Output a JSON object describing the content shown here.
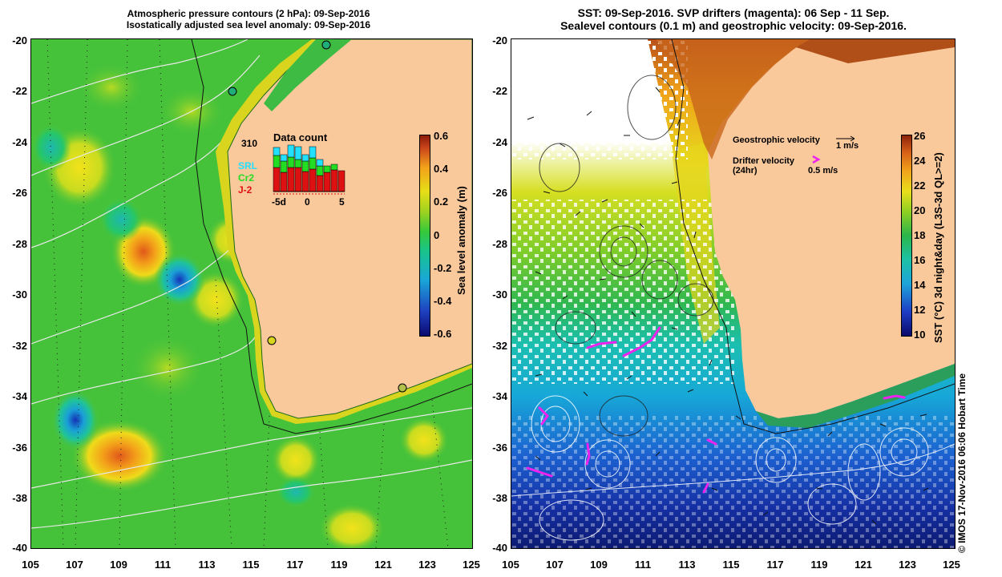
{
  "left_panel": {
    "title_line1": "Atmospheric pressure contours (2 hPa): 09-Sep-2016",
    "title_line2": "Isostatically adjusted sea level anomaly: 09-Sep-2016",
    "y_ticks": [
      "-20",
      "-22",
      "-24",
      "-26",
      "-28",
      "-30",
      "-32",
      "-34",
      "-36",
      "-38",
      "-40"
    ],
    "colorbar_title": "Sea level anomaly (m)",
    "colorbar_ticks": [
      "0.6",
      "0.4",
      "0.2",
      "0",
      "-0.2",
      "-0.4",
      "-0.6"
    ],
    "inset": {
      "title": "Data count",
      "total": "310",
      "sat1": "SRL",
      "sat2": "Cr2",
      "sat3": "J-2",
      "x_ticks": [
        "-5d",
        "0",
        "5"
      ],
      "sat1_color": "#22e0ff",
      "sat2_color": "#22dd22",
      "sat3_color": "#dd1111"
    }
  },
  "right_panel": {
    "title_line1": "SST: 09-Sep-2016. SVP drifters (magenta): 06 Sep - 11 Sep.",
    "title_line2": "Sealevel contours (0.1 m) and geostrophic velocity: 09-Sep-2016.",
    "y_ticks": [
      "-20",
      "-22",
      "-24",
      "-26",
      "-28",
      "-30",
      "-32",
      "-34",
      "-36",
      "-38",
      "-40"
    ],
    "colorbar_title": "SST (°C) 3d night&day (L3S-3d QL>=2)",
    "colorbar_ticks": [
      "26",
      "24",
      "22",
      "20",
      "18",
      "16",
      "14",
      "12",
      "10"
    ],
    "legend": {
      "geo_label": "Geostrophic velocity",
      "geo_scale": "1 m/s",
      "drifter_label": "Drifter velocity",
      "drifter_period": "(24hr)",
      "drifter_scale": "0.5 m/s",
      "drifter_color": "#ee22ee"
    }
  },
  "x_ticks": [
    "105",
    "107",
    "109",
    "111",
    "113",
    "115",
    "117",
    "119",
    "121",
    "123",
    "125"
  ],
  "credit": "© IMOS 17-Nov-2016 06:06 Hobart Time",
  "colors": {
    "land": "#f9c89b",
    "sla_base": "#44c43c",
    "sst_cold": "#1e3dc4"
  }
}
